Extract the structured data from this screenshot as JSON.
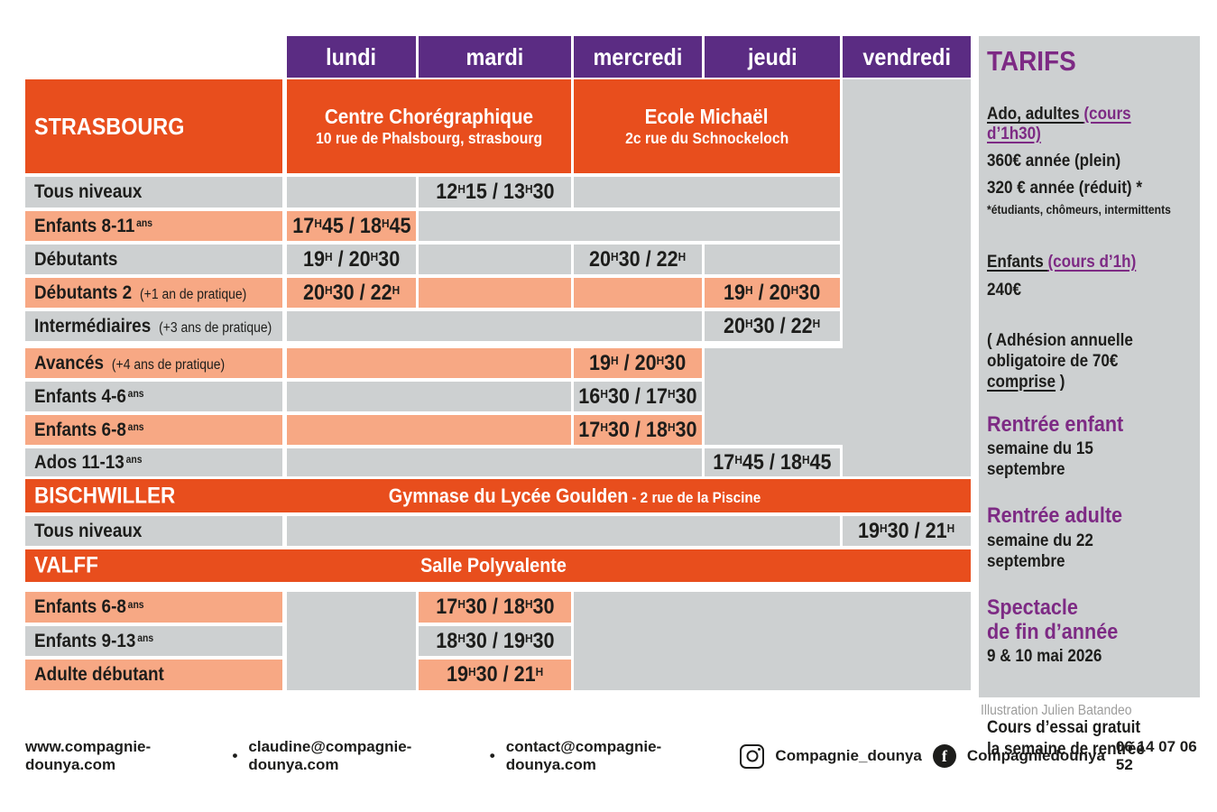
{
  "colors": {
    "purple": "#5b2c83",
    "orange": "#e84e1d",
    "salmon": "#f7a884",
    "gray": "#cdd0d1",
    "violet": "#7d2a84",
    "ink": "#1d1d1b",
    "credit_gray": "#9d9d9c"
  },
  "days": [
    "lundi",
    "mardi",
    "mercredi",
    "jeudi",
    "vendredi"
  ],
  "locations": {
    "strasbourg": {
      "label": "STRASBOURG",
      "venue1": {
        "name": "Centre Chorégraphique",
        "address": "10 rue de Phalsbourg, strasbourg"
      },
      "venue2": {
        "name": "Ecole Michaël",
        "address": "2c rue du Schnockeloch"
      }
    },
    "bischwiller": {
      "label": "BISCHWILLER",
      "venue": "Gymnase du Lycée Goulden",
      "address": "- 2 rue de la Piscine"
    },
    "valff": {
      "label": "VALFF",
      "venue": "Salle Polyvalente"
    }
  },
  "schedule": {
    "rows": [
      {
        "label": "Tous niveaux",
        "stripe": "gray",
        "times": {
          "mardi": "12H15 / 13H30"
        }
      },
      {
        "label": "Enfants 8-11",
        "sup": "ans",
        "stripe": "salmon",
        "times": {
          "lundi": "17H45 / 18H45"
        }
      },
      {
        "label": "Débutants",
        "stripe": "gray",
        "times": {
          "lundi": "19H / 20H30",
          "mercredi": "20H30 / 22H"
        }
      },
      {
        "label": "Débutants 2",
        "note": "(+1 an de pratique)",
        "stripe": "salmon",
        "times": {
          "lundi": "20H30 / 22H",
          "jeudi": "19H / 20H30"
        }
      },
      {
        "label": "Intermédiaires",
        "note": "(+3 ans de pratique)",
        "stripe": "gray",
        "times": {
          "jeudi": "20H30 / 22H"
        }
      },
      {
        "label": "Avancés",
        "note": "(+4 ans de pratique)",
        "stripe": "salmon",
        "times": {
          "mercredi": "19H / 20H30"
        }
      },
      {
        "label": "Enfants 4-6",
        "sup": "ans",
        "stripe": "gray",
        "times": {
          "mercredi": "16H30 / 17H30"
        }
      },
      {
        "label": "Enfants 6-8",
        "sup": "ans",
        "stripe": "salmon",
        "times": {
          "mercredi": "17H30 / 18H30"
        }
      },
      {
        "label": "Ados 11-13",
        "sup": "ans",
        "stripe": "gray",
        "times": {
          "jeudi": "17H45 / 18H45"
        }
      },
      {
        "label": "Tous niveaux",
        "stripe": "gray",
        "times": {
          "vendredi": "19H30 / 21H"
        }
      },
      {
        "label": "Enfants 6-8",
        "sup": "ans",
        "stripe": "salmon",
        "times": {
          "mardi": "17H30 / 18H30"
        }
      },
      {
        "label": "Enfants 9-13",
        "sup": "ans",
        "stripe": "gray",
        "times": {
          "mardi": "18H30 / 19H30"
        }
      },
      {
        "label": "Adulte débutant",
        "stripe": "salmon",
        "times": {
          "mardi": "19H30 / 21H"
        }
      }
    ]
  },
  "sidebar": {
    "title": "TARIFS",
    "sections": [
      {
        "t": "h2",
        "parts": [
          {
            "text": "Ado, adultes ",
            "u": "black"
          },
          {
            "text": "(cours d’1h30)",
            "u": "purple"
          }
        ]
      },
      {
        "t": "b",
        "text": "360€ année (plein)"
      },
      {
        "t": "b",
        "text": "320 € année (réduit) *"
      },
      {
        "t": "s",
        "text": "*étudiants, chômeurs, intermittents"
      },
      {
        "t": "h2",
        "parts": [
          {
            "text": "Enfants ",
            "u": "black"
          },
          {
            "text": "(cours d’1h)",
            "u": "purple"
          }
        ]
      },
      {
        "t": "b",
        "text": "240€"
      },
      {
        "t": "b",
        "parts": [
          {
            "text": "( Adhésion annuelle\nobligatoire de 70€ "
          },
          {
            "text": "comprise",
            "u": "black"
          },
          {
            "text": " )"
          }
        ]
      },
      {
        "t": "ph",
        "text": "Rentrée enfant"
      },
      {
        "t": "b",
        "text": "semaine du 15 septembre"
      },
      {
        "t": "ph",
        "text": "Rentrée adulte"
      },
      {
        "t": "b",
        "text": "semaine du 22 septembre"
      },
      {
        "t": "ph",
        "text": "Spectacle\nde fin d’année"
      },
      {
        "t": "b",
        "text": "9 & 10 mai 2026"
      },
      {
        "t": "b",
        "text": "Cours d’essai gratuit\nla semaine de rentrée"
      }
    ]
  },
  "credit": "Illustration Julien Batandeo",
  "footer": {
    "website": "www.compagnie-dounya.com",
    "separator": "•",
    "email1": "claudine@compagnie-dounya.com",
    "email2": "contact@compagnie-dounya.com",
    "instagram": "Compagnie_dounya",
    "facebook": "Compagniedounya",
    "phone": "06 14 07 06 52"
  }
}
